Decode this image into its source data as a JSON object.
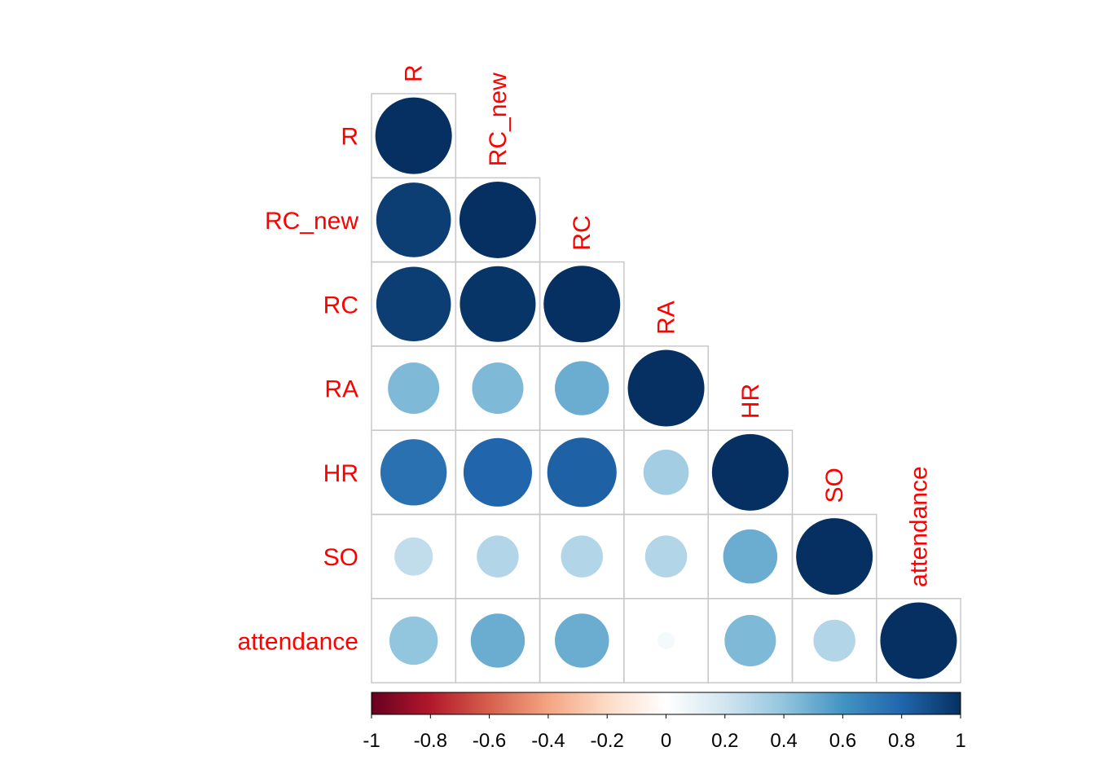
{
  "chart_data": {
    "type": "heatmap",
    "style": "corrplot-circle-lower-triangle",
    "variables": [
      "R",
      "RC_new",
      "RC",
      "RA",
      "HR",
      "SO",
      "attendance"
    ],
    "matrix": [
      [
        1.0,
        0.95,
        0.95,
        0.45,
        0.75,
        0.25,
        0.4
      ],
      [
        0.95,
        1.0,
        0.98,
        0.45,
        0.8,
        0.3,
        0.5
      ],
      [
        0.95,
        0.98,
        1.0,
        0.5,
        0.82,
        0.3,
        0.5
      ],
      [
        0.45,
        0.45,
        0.5,
        1.0,
        0.35,
        0.3,
        0.05
      ],
      [
        0.75,
        0.8,
        0.82,
        0.35,
        1.0,
        0.5,
        0.45
      ],
      [
        0.25,
        0.3,
        0.3,
        0.3,
        0.5,
        1.0,
        0.3
      ],
      [
        0.4,
        0.5,
        0.5,
        0.05,
        0.45,
        0.3,
        1.0
      ]
    ],
    "colorbar": {
      "range": [
        -1,
        1
      ],
      "ticks": [
        -1,
        -0.8,
        -0.6,
        -0.4,
        -0.2,
        0,
        0.2,
        0.4,
        0.6,
        0.8,
        1
      ],
      "tick_labels": [
        "-1",
        "-0.8",
        "-0.6",
        "-0.4",
        "-0.2",
        "0",
        "0.2",
        "0.4",
        "0.6",
        "0.8",
        "1"
      ],
      "stops": [
        "#67001F",
        "#B2182B",
        "#D6604D",
        "#F4A582",
        "#FDDBC7",
        "#FFFFFF",
        "#D1E5F0",
        "#92C5DE",
        "#4393C3",
        "#2166AC",
        "#053061"
      ]
    },
    "label_color": "#FF0000",
    "grid_color": "#C8C8C8"
  }
}
